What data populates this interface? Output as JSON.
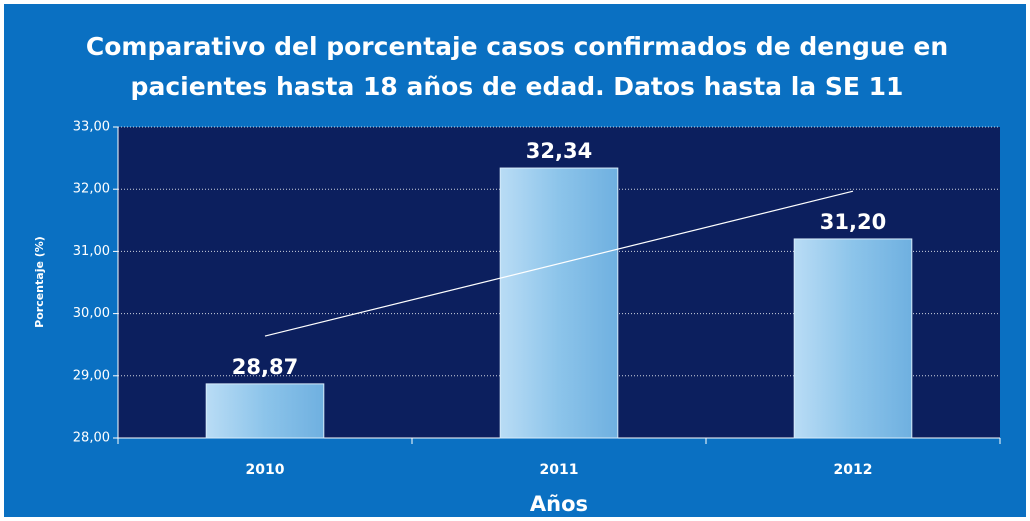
{
  "chart_data": {
    "type": "bar",
    "title": [
      "Comparativo del porcentaje casos confirmados de dengue en",
      "pacientes hasta 18 años de edad. Datos hasta la SE 11"
    ],
    "x_label": "Años",
    "y_label": "Porcentaje (%)",
    "categories": [
      "2010",
      "2011",
      "2012"
    ],
    "values": [
      28.87,
      32.34,
      31.2
    ],
    "value_labels": [
      "28,87",
      "32,34",
      "31,20"
    ],
    "color": "#8cc4ea",
    "ylim": [
      28,
      33
    ],
    "yticks": [
      {
        "value": 28,
        "label": "28,00"
      },
      {
        "value": 29,
        "label": "29,00"
      },
      {
        "value": 30,
        "label": "30,00"
      },
      {
        "value": 31,
        "label": "31,00"
      },
      {
        "value": 32,
        "label": "32,00"
      },
      {
        "value": 33,
        "label": "33,00"
      }
    ],
    "grid": true,
    "trendline": true
  }
}
